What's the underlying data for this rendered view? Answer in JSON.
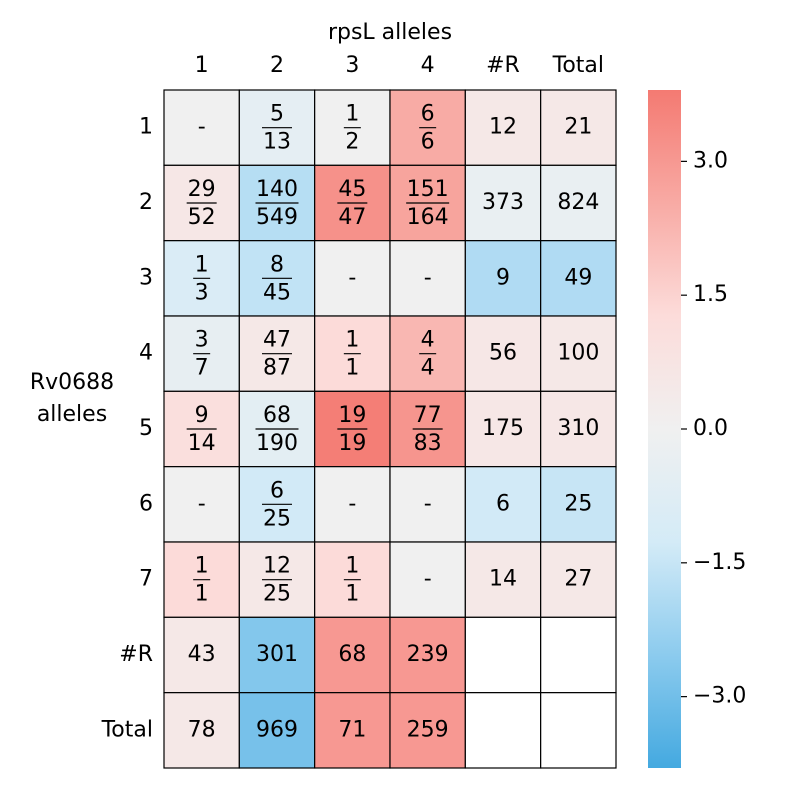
{
  "chart_data": {
    "type": "heatmap",
    "x_label": "rpsL alleles",
    "y_label": [
      "Rv0688",
      "alleles"
    ],
    "columns": [
      "1",
      "2",
      "3",
      "4",
      "#R",
      "Total"
    ],
    "rows": [
      "1",
      "2",
      "3",
      "4",
      "5",
      "6",
      "7",
      "#R",
      "Total"
    ],
    "cells": [
      [
        "-",
        {
          "num": 5,
          "den": 13
        },
        {
          "num": 1,
          "den": 2
        },
        {
          "num": 6,
          "den": 6
        },
        12,
        21
      ],
      [
        {
          "num": 29,
          "den": 52
        },
        {
          "num": 140,
          "den": 549
        },
        {
          "num": 45,
          "den": 47
        },
        {
          "num": 151,
          "den": 164
        },
        373,
        824
      ],
      [
        {
          "num": 1,
          "den": 3
        },
        {
          "num": 8,
          "den": 45
        },
        "-",
        "-",
        9,
        49
      ],
      [
        {
          "num": 3,
          "den": 7
        },
        {
          "num": 47,
          "den": 87
        },
        {
          "num": 1,
          "den": 1
        },
        {
          "num": 4,
          "den": 4
        },
        56,
        100
      ],
      [
        {
          "num": 9,
          "den": 14
        },
        {
          "num": 68,
          "den": 190
        },
        {
          "num": 19,
          "den": 19
        },
        {
          "num": 77,
          "den": 83
        },
        175,
        310
      ],
      [
        "-",
        {
          "num": 6,
          "den": 25
        },
        "-",
        "-",
        6,
        25
      ],
      [
        {
          "num": 1,
          "den": 1
        },
        {
          "num": 12,
          "den": 25
        },
        {
          "num": 1,
          "den": 1
        },
        "-",
        14,
        27
      ],
      [
        43,
        301,
        68,
        239,
        null,
        null
      ],
      [
        78,
        969,
        71,
        259,
        null,
        null
      ]
    ],
    "values": [
      [
        0,
        -0.5,
        0,
        2.5,
        0.5,
        0.5
      ],
      [
        0.6,
        -1.8,
        3.2,
        2.7,
        -0.3,
        -0.3
      ],
      [
        -1.0,
        -1.6,
        0,
        0,
        -1.9,
        -1.9
      ],
      [
        -0.4,
        0.5,
        1.3,
        2.2,
        0.6,
        0.5
      ],
      [
        1.1,
        -0.6,
        3.7,
        3.1,
        0.6,
        0.6
      ],
      [
        0,
        -1.3,
        0,
        0,
        -1.3,
        -1.5
      ],
      [
        1.3,
        0.5,
        1.3,
        0,
        0.5,
        0.5
      ],
      [
        0.5,
        -2.7,
        3.0,
        3.0,
        null,
        null
      ],
      [
        0.5,
        -2.9,
        3.0,
        3.0,
        null,
        null
      ]
    ],
    "colormap": [
      "#44a9e0",
      "#8ccbee",
      "#d4ebf7",
      "#f0f0f0",
      "#fcdcda",
      "#f8aaa4",
      "#f47a72"
    ],
    "clim": [
      -3.8,
      3.8
    ],
    "cticks": [
      {
        "value": -3.0,
        "label": "−3.0"
      },
      {
        "value": -1.5,
        "label": "−1.5"
      },
      {
        "value": 0,
        "label": "0.0"
      },
      {
        "value": 1.5,
        "label": "1.5"
      },
      {
        "value": 3.0,
        "label": "3.0"
      }
    ]
  }
}
